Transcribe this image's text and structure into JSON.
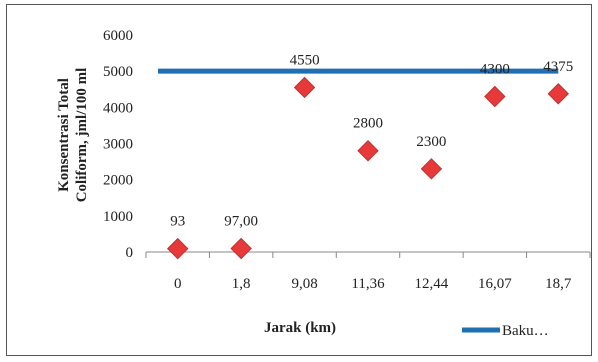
{
  "chart_data": {
    "type": "scatter",
    "categories": [
      "0",
      "1,8",
      "9,08",
      "11,36",
      "12,44",
      "16,07",
      "18,7"
    ],
    "series": [
      {
        "values": [
          93,
          97,
          4550,
          2800,
          2300,
          4300,
          4375
        ],
        "data_labels": [
          "93",
          "97,00",
          "4550",
          "2800",
          "2300",
          "4300",
          "4375"
        ],
        "color": "#e8393a",
        "marker": "diamond"
      },
      {
        "name": "Baku…",
        "values": [
          5000,
          5000,
          5000,
          5000,
          5000,
          5000,
          5000
        ],
        "color": "#1f6fb5",
        "marker": "line"
      }
    ],
    "xlabel": "Jarak (km)",
    "ylabel_line1": "Konsentrasi Total",
    "ylabel_line2": "Coliform, jml/100 ml",
    "yticks": [
      "0",
      "1000",
      "2000",
      "3000",
      "4000",
      "5000",
      "6000"
    ],
    "ylim": [
      0,
      6000
    ],
    "grid": false,
    "legend_position": "bottom-right"
  }
}
